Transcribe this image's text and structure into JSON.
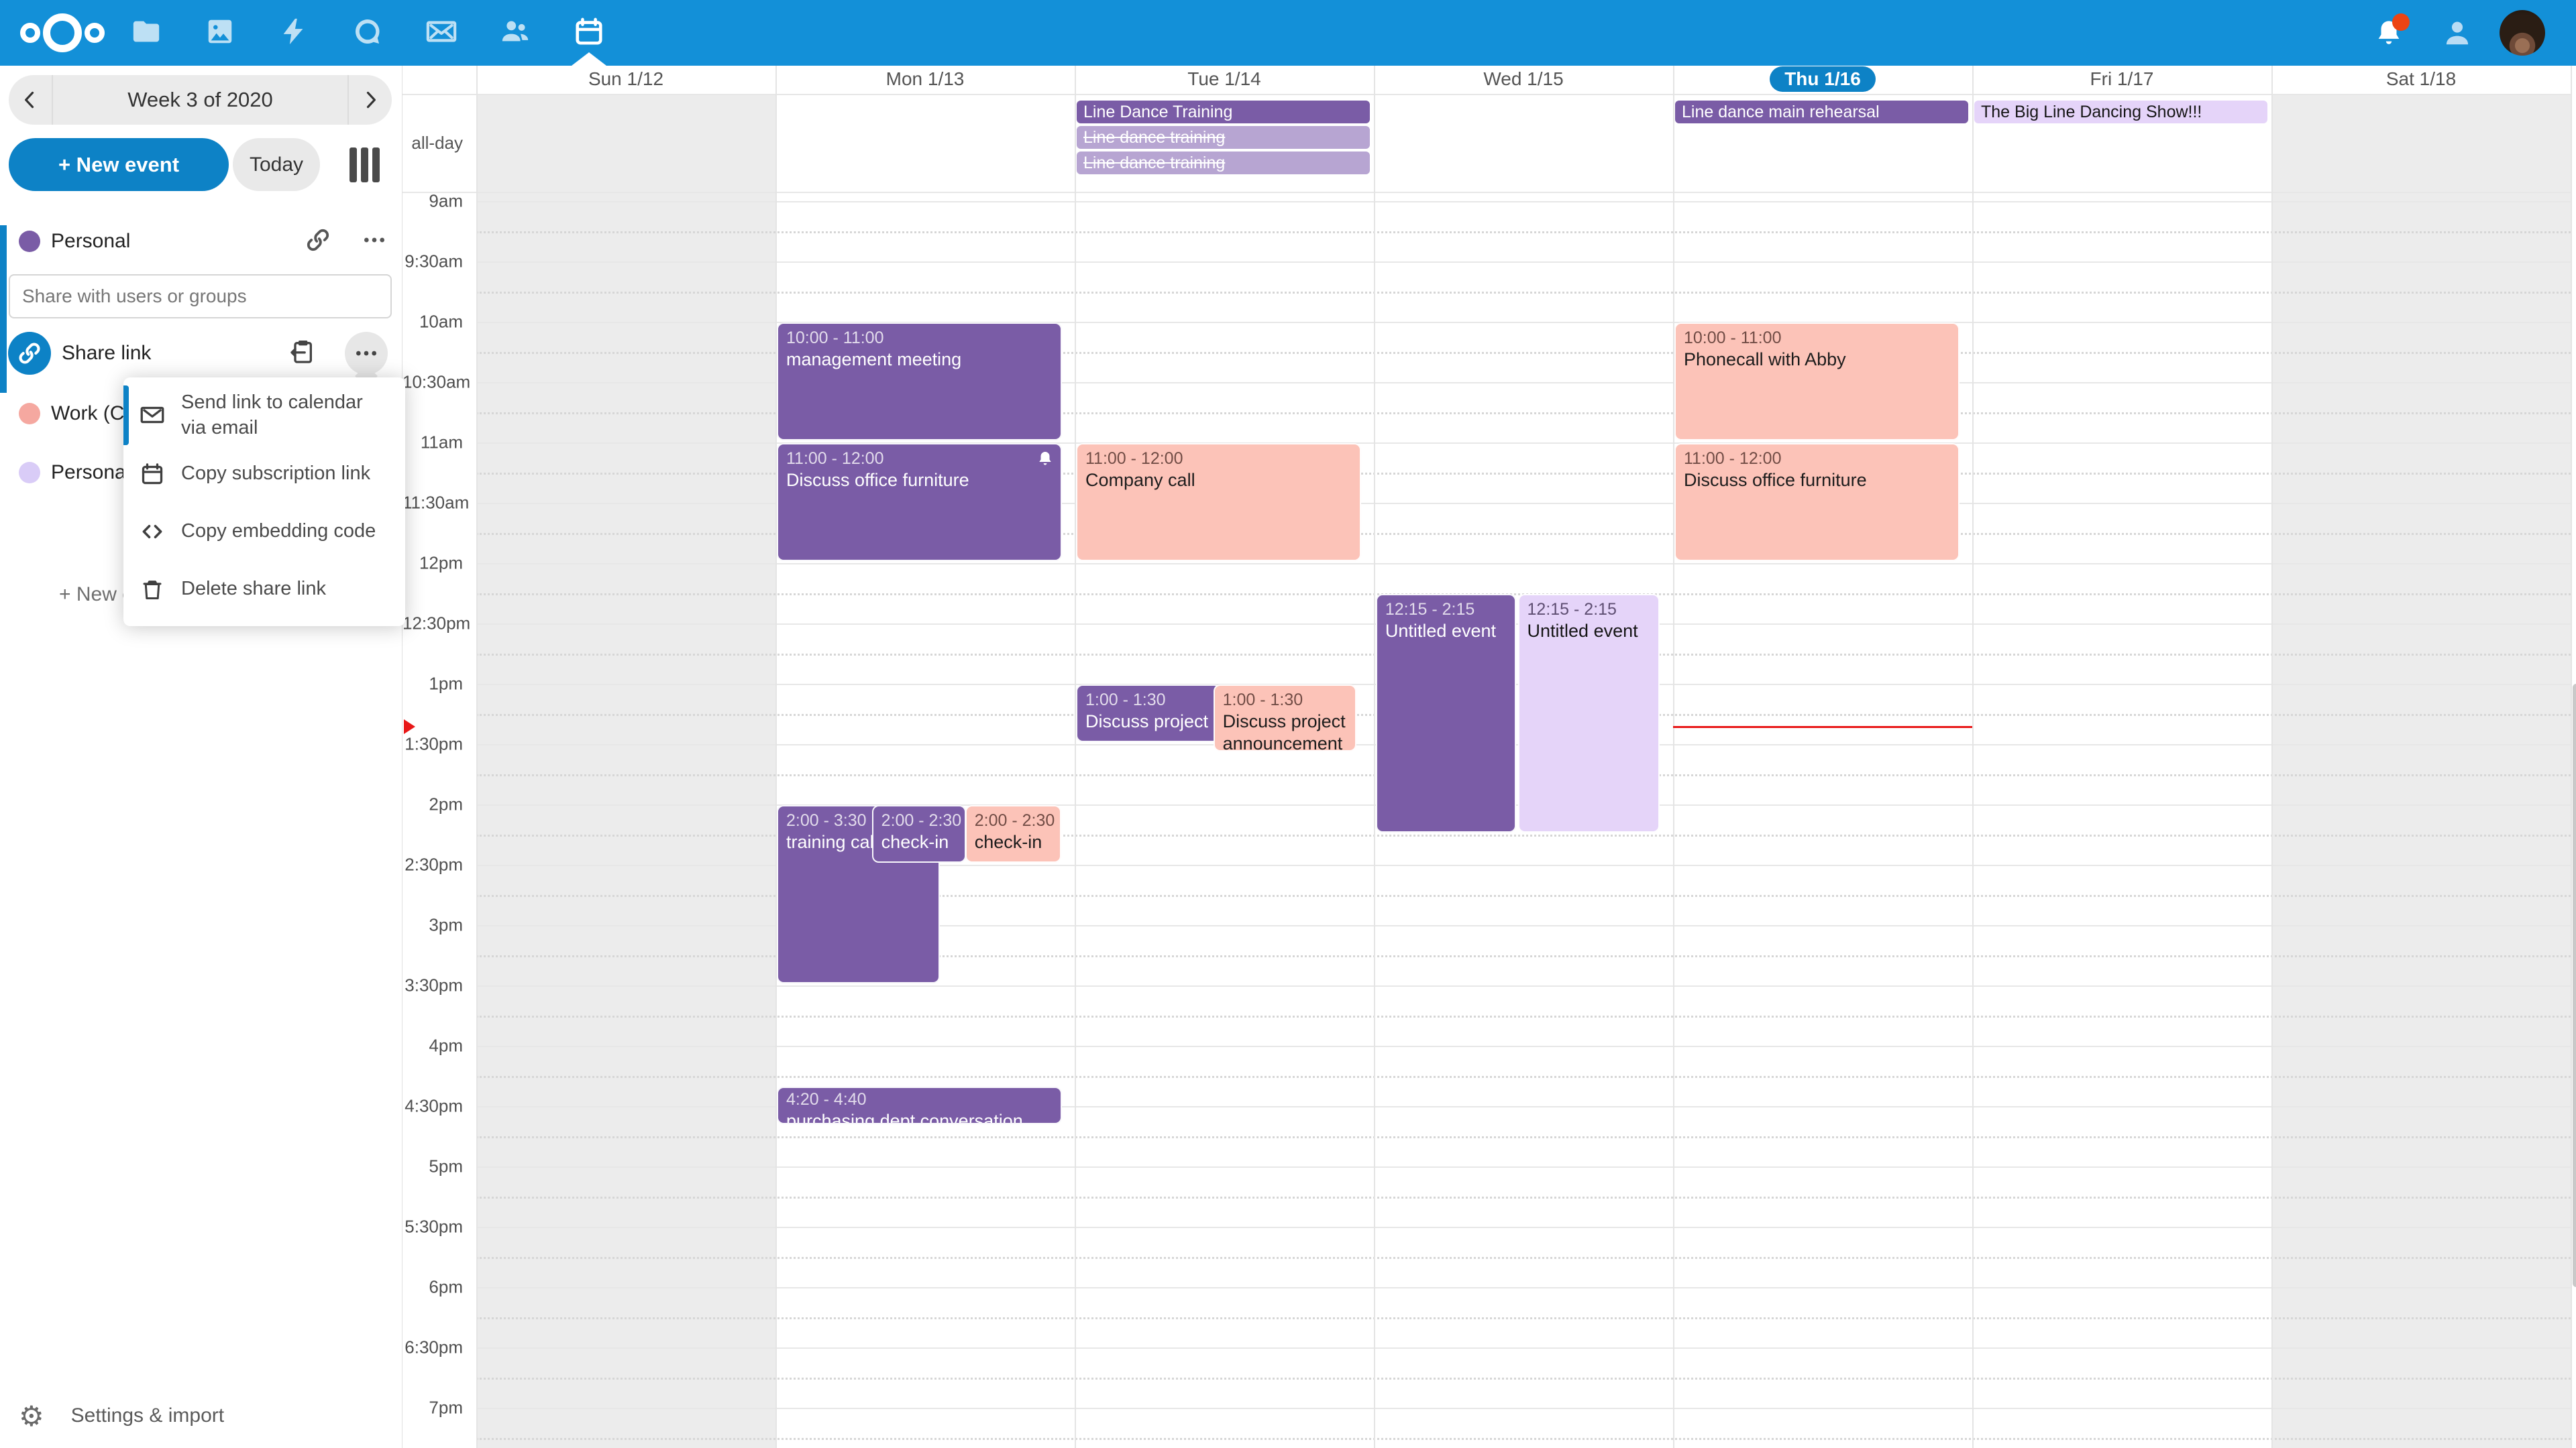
{
  "colors": {
    "header_bg": "#1390d8",
    "accent": "#0d82c6",
    "event_purple": "#7a5ca6",
    "event_purple_faded": "#b7a5d2",
    "event_pink": "#fcc3b8",
    "event_lavender": "#e5d4f9",
    "weekend_bg": "#ececec",
    "now_red": "#e81717"
  },
  "navbar": {
    "apps": [
      {
        "name": "files",
        "icon": "folder-icon"
      },
      {
        "name": "photos",
        "icon": "image-icon"
      },
      {
        "name": "activity",
        "icon": "lightning-icon"
      },
      {
        "name": "talk",
        "icon": "talk-icon"
      },
      {
        "name": "mail",
        "icon": "mail-icon"
      },
      {
        "name": "contacts",
        "icon": "people-icon"
      },
      {
        "name": "calendar",
        "icon": "calendar-icon",
        "active": true
      }
    ],
    "notifications_badge": true
  },
  "sidebar": {
    "week_label": "Week 3 of 2020",
    "new_event_label": "+ New event",
    "today_label": "Today",
    "personal_calendar": {
      "label": "Personal",
      "color": "#7a5ca6"
    },
    "share_input_placeholder": "Share with users or groups",
    "share_link_label": "Share link",
    "other_calendars": [
      {
        "label": "Work (C",
        "color": "#f5a8a0"
      },
      {
        "label": "Persona",
        "color": "#d9ccf7"
      }
    ],
    "new_calendar_label": "+ New c",
    "settings_label": "Settings & import"
  },
  "share_menu": {
    "items": [
      {
        "icon": "mail-icon",
        "label": "Send link to calendar via email",
        "focused": true
      },
      {
        "icon": "calendar-icon",
        "label": "Copy subscription link",
        "focused": false
      },
      {
        "icon": "code-icon",
        "label": "Copy embedding code",
        "focused": false
      },
      {
        "icon": "trash-icon",
        "label": "Delete share link",
        "focused": false
      }
    ]
  },
  "calendar": {
    "allday_label": "all-day",
    "days": [
      {
        "label": "Sun 1/12",
        "weekend": true,
        "today": false
      },
      {
        "label": "Mon 1/13",
        "weekend": false,
        "today": false
      },
      {
        "label": "Tue 1/14",
        "weekend": false,
        "today": false
      },
      {
        "label": "Wed 1/15",
        "weekend": false,
        "today": false
      },
      {
        "label": "Thu 1/16",
        "weekend": false,
        "today": true
      },
      {
        "label": "Fri 1/17",
        "weekend": false,
        "today": false
      },
      {
        "label": "Sat 1/18",
        "weekend": true,
        "today": false
      }
    ],
    "time_labels": [
      "9am",
      "9:30am",
      "10am",
      "10:30am",
      "11am",
      "11:30am",
      "12pm",
      "12:30pm",
      "1pm",
      "1:30pm",
      "2pm",
      "2:30pm",
      "3pm",
      "3:30pm",
      "4pm",
      "4:30pm",
      "5pm",
      "5:30pm",
      "6pm",
      "6:30pm",
      "7pm"
    ],
    "allday_events": [
      {
        "day": 2,
        "slot": 0,
        "title": "Line Dance Training",
        "style": "purple",
        "strikethrough": false
      },
      {
        "day": 2,
        "slot": 1,
        "title": "Line dance training",
        "style": "purple-faded",
        "strikethrough": true
      },
      {
        "day": 2,
        "slot": 2,
        "title": "Line dance training",
        "style": "purple-faded",
        "strikethrough": true
      },
      {
        "day": 4,
        "slot": 0,
        "title": "Line dance main rehearsal",
        "style": "purple",
        "strikethrough": false
      },
      {
        "day": 5,
        "slot": 0,
        "title": "The Big Line Dancing Show!!!",
        "style": "lavender",
        "strikethrough": false
      }
    ],
    "events": [
      {
        "day": 1,
        "start": 10,
        "end": 11,
        "time": "10:00 - 11:00",
        "title": "management meeting",
        "style": "purple",
        "x": 0,
        "w": 0.965,
        "nowrap": true,
        "bell": false
      },
      {
        "day": 1,
        "start": 11,
        "end": 12,
        "time": "11:00 - 12:00",
        "title": "Discuss office furniture",
        "style": "purple",
        "x": 0,
        "w": 0.965,
        "nowrap": true,
        "bell": true
      },
      {
        "day": 1,
        "start": 14,
        "end": 15.5,
        "time": "2:00 - 3:30",
        "title": "training call",
        "style": "purple",
        "x": 0,
        "w": 0.552,
        "nowrap": true,
        "bell": false
      },
      {
        "day": 1,
        "start": 14,
        "end": 14.5,
        "time": "2:00 - 2:30",
        "title": "check-in",
        "style": "purple",
        "x": 0.322,
        "w": 0.318,
        "nowrap": true,
        "bell": false
      },
      {
        "day": 1,
        "start": 14,
        "end": 14.5,
        "time": "2:00 - 2:30",
        "title": "check-in",
        "style": "pink",
        "x": 0.638,
        "w": 0.325,
        "nowrap": true,
        "bell": false
      },
      {
        "day": 1,
        "start": 16.333,
        "end": 16.667,
        "time": "4:20 - 4:40",
        "title": "purchasing dept conversation",
        "style": "purple",
        "x": 0,
        "w": 0.965,
        "nowrap": true,
        "bell": false,
        "small": true
      },
      {
        "day": 2,
        "start": 11,
        "end": 12,
        "time": "11:00 - 12:00",
        "title": "Company call",
        "style": "pink",
        "x": 0,
        "w": 0.965,
        "nowrap": true,
        "bell": false
      },
      {
        "day": 2,
        "start": 13,
        "end": 13.5,
        "time": "1:00 - 1:30",
        "title": "Discuss project announcement",
        "style": "purple",
        "x": 0,
        "w": 0.49,
        "nowrap": true,
        "bell": false
      },
      {
        "day": 2,
        "start": 13,
        "end": 13.5,
        "time": "1:00 - 1:30",
        "title": "Discuss project announcement",
        "style": "pink",
        "x": 0.465,
        "w": 0.485,
        "nowrap": false,
        "bell": false,
        "tall": 100
      },
      {
        "day": 3,
        "start": 12.25,
        "end": 14.25,
        "time": "12:15 - 2:15",
        "title": "Untitled event",
        "style": "purple",
        "x": 0.002,
        "w": 0.475,
        "nowrap": true,
        "bell": false
      },
      {
        "day": 3,
        "start": 12.25,
        "end": 14.25,
        "time": "12:15 - 2:15",
        "title": "Untitled event",
        "style": "lavender",
        "x": 0.483,
        "w": 0.48,
        "nowrap": true,
        "bell": false
      },
      {
        "day": 4,
        "start": 10,
        "end": 11,
        "time": "10:00 - 11:00",
        "title": "Phonecall with Abby",
        "style": "pink",
        "x": 0,
        "w": 0.965,
        "nowrap": true,
        "bell": false
      },
      {
        "day": 4,
        "start": 11,
        "end": 12,
        "time": "11:00 - 12:00",
        "title": "Discuss office furniture",
        "style": "pink",
        "x": 0,
        "w": 0.965,
        "nowrap": true,
        "bell": false
      }
    ],
    "now": {
      "day": 4,
      "hour": 13.35
    }
  }
}
